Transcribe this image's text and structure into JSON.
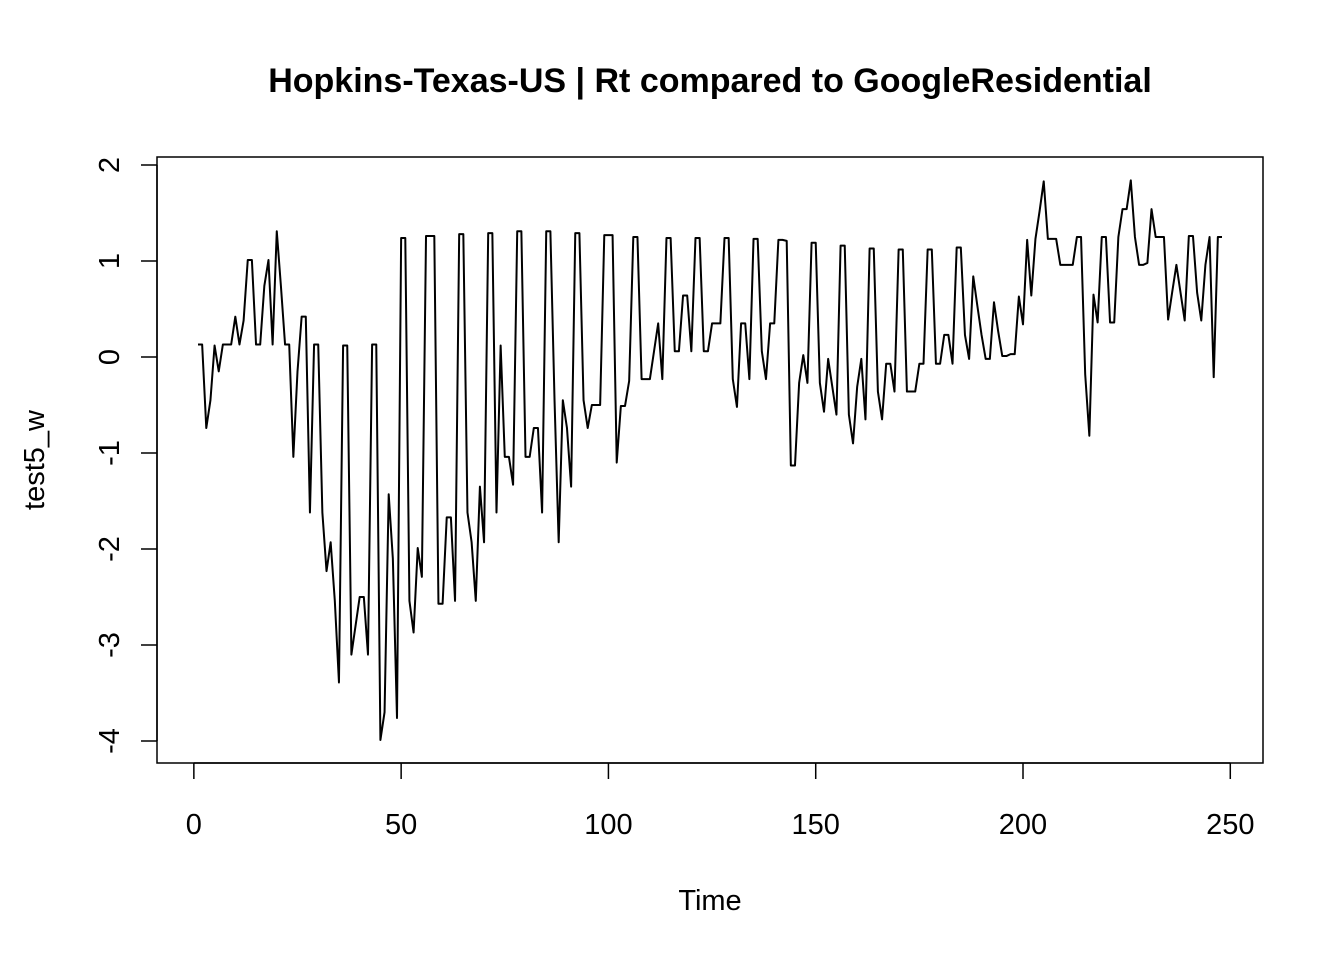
{
  "chart_data": {
    "type": "line",
    "title": "Hopkins-Texas-US | Rt compared to GoogleResidential",
    "xlabel": "Time",
    "ylabel": "test5_w",
    "xlim": [
      1,
      248
    ],
    "ylim": [
      -4,
      2
    ],
    "x_ticks": [
      0,
      50,
      100,
      150,
      200,
      250
    ],
    "y_ticks": [
      -4,
      -3,
      -2,
      -1,
      0,
      1,
      2
    ],
    "grid": false,
    "series": [
      {
        "x_start": 1,
        "values": [
          0.13,
          0.13,
          -0.74,
          -0.45,
          0.12,
          -0.15,
          0.13,
          0.13,
          0.13,
          0.42,
          0.13,
          0.38,
          1.01,
          1.01,
          0.13,
          0.13,
          0.74,
          1.01,
          0.13,
          1.31,
          0.74,
          0.13,
          0.13,
          -1.04,
          -0.15,
          0.42,
          0.42,
          -1.62,
          0.13,
          0.13,
          -1.62,
          -2.23,
          -1.93,
          -2.54,
          -3.39,
          0.12,
          0.12,
          -3.1,
          -2.8,
          -2.5,
          -2.5,
          -3.1,
          0.13,
          0.13,
          -3.99,
          -3.7,
          -1.43,
          -2.1,
          -3.76,
          1.24,
          1.24,
          -2.54,
          -2.87,
          -1.99,
          -2.29,
          1.26,
          1.26,
          1.26,
          -2.57,
          -2.57,
          -1.67,
          -1.67,
          -2.54,
          1.28,
          1.28,
          -1.62,
          -1.93,
          -2.54,
          -1.35,
          -1.93,
          1.29,
          1.29,
          -1.62,
          0.12,
          -1.04,
          -1.04,
          -1.33,
          1.31,
          1.31,
          -1.04,
          -1.04,
          -0.74,
          -0.74,
          -1.62,
          1.31,
          1.31,
          -0.45,
          -1.93,
          -0.45,
          -0.74,
          -1.35,
          1.29,
          1.29,
          -0.45,
          -0.74,
          -0.5,
          -0.5,
          -0.5,
          1.27,
          1.27,
          1.27,
          -1.1,
          -0.51,
          -0.51,
          -0.25,
          1.25,
          1.25,
          -0.23,
          -0.23,
          -0.23,
          0.06,
          0.35,
          -0.23,
          1.24,
          1.24,
          0.06,
          0.06,
          0.64,
          0.64,
          0.06,
          1.24,
          1.24,
          0.06,
          0.06,
          0.35,
          0.35,
          0.35,
          1.24,
          1.24,
          -0.23,
          -0.52,
          0.35,
          0.35,
          -0.23,
          1.23,
          1.23,
          0.06,
          -0.23,
          0.35,
          0.35,
          1.22,
          1.22,
          1.21,
          -1.13,
          -1.13,
          -0.27,
          0.02,
          -0.27,
          1.19,
          1.19,
          -0.27,
          -0.57,
          -0.02,
          -0.31,
          -0.6,
          1.16,
          1.16,
          -0.6,
          -0.9,
          -0.31,
          -0.02,
          -0.65,
          1.13,
          1.13,
          -0.36,
          -0.65,
          -0.07,
          -0.07,
          -0.36,
          1.12,
          1.12,
          -0.36,
          -0.36,
          -0.36,
          -0.07,
          -0.07,
          1.12,
          1.12,
          -0.07,
          -0.07,
          0.23,
          0.23,
          -0.07,
          1.14,
          1.14,
          0.23,
          -0.02,
          0.84,
          0.53,
          0.23,
          -0.02,
          -0.02,
          0.57,
          0.27,
          0.01,
          0.01,
          0.03,
          0.03,
          0.63,
          0.34,
          1.22,
          0.64,
          1.23,
          1.52,
          1.83,
          1.23,
          1.23,
          1.23,
          0.96,
          0.96,
          0.96,
          0.96,
          1.25,
          1.25,
          -0.18,
          -0.82,
          0.65,
          0.36,
          1.25,
          1.25,
          0.36,
          0.36,
          1.25,
          1.54,
          1.54,
          1.84,
          1.25,
          0.96,
          0.96,
          0.98,
          1.54,
          1.25,
          1.25,
          1.25,
          0.39,
          0.68,
          0.96,
          0.67,
          0.38,
          1.26,
          1.26,
          0.67,
          0.38,
          0.96,
          1.25,
          -0.21,
          1.25,
          1.25
        ]
      }
    ]
  }
}
